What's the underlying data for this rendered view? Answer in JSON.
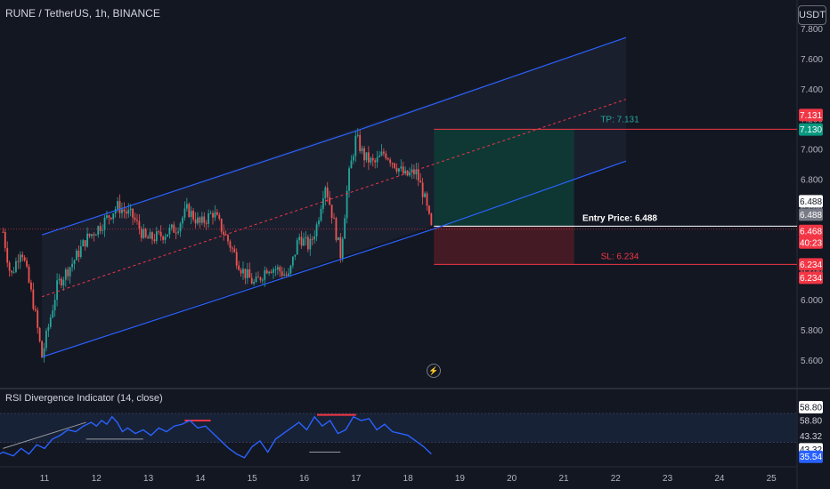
{
  "header": {
    "symbol": "RUNE / TetherUS, 1h, BINANCE",
    "currency": "USDT"
  },
  "indicator": {
    "title": "RSI Divergence Indicator (14, close)"
  },
  "colors": {
    "background": "#131722",
    "up": "#26a69a",
    "down": "#ef5350",
    "channel": "#2962ff",
    "midline": "#f23645",
    "rsi_line": "#2962ff",
    "bearish_div": "#f23645",
    "bullish_div": "#9598a1"
  },
  "trade": {
    "tp_label": "TP: 7.131",
    "tp": 7.131,
    "entry_label": "Entry Price: 6.488",
    "entry": 6.488,
    "sl_label": "SL: 6.234",
    "sl": 6.234
  },
  "chart_data": [
    {
      "type": "candlestick",
      "title": "RUNE / TetherUS, 1h, BINANCE",
      "xlabel": "",
      "ylabel": "",
      "x_ticks": [
        "11",
        "12",
        "13",
        "14",
        "15",
        "16",
        "17",
        "18",
        "19",
        "20",
        "21",
        "22",
        "23",
        "24",
        "25"
      ],
      "y_ticks": [
        "5.600",
        "5.800",
        "6.000",
        "6.200",
        "6.400",
        "6.600",
        "6.800",
        "7.000",
        "7.200",
        "7.400",
        "7.600",
        "7.800"
      ],
      "ylim": [
        5.55,
        7.85
      ],
      "price_keypoints": [
        {
          "day": 10.2,
          "price": 6.45
        },
        {
          "day": 10.35,
          "price": 6.15
        },
        {
          "day": 10.55,
          "price": 6.35
        },
        {
          "day": 10.8,
          "price": 5.95
        },
        {
          "day": 10.95,
          "price": 5.62
        },
        {
          "day": 11.25,
          "price": 6.1
        },
        {
          "day": 11.55,
          "price": 6.25
        },
        {
          "day": 11.8,
          "price": 6.4
        },
        {
          "day": 12.1,
          "price": 6.5
        },
        {
          "day": 12.4,
          "price": 6.62
        },
        {
          "day": 12.7,
          "price": 6.55
        },
        {
          "day": 12.95,
          "price": 6.4
        },
        {
          "day": 13.2,
          "price": 6.42
        },
        {
          "day": 13.55,
          "price": 6.48
        },
        {
          "day": 13.75,
          "price": 6.6
        },
        {
          "day": 14.0,
          "price": 6.5
        },
        {
          "day": 14.25,
          "price": 6.58
        },
        {
          "day": 14.55,
          "price": 6.38
        },
        {
          "day": 14.8,
          "price": 6.2
        },
        {
          "day": 15.05,
          "price": 6.1
        },
        {
          "day": 15.3,
          "price": 6.22
        },
        {
          "day": 15.5,
          "price": 6.2
        },
        {
          "day": 15.7,
          "price": 6.15
        },
        {
          "day": 15.9,
          "price": 6.42
        },
        {
          "day": 16.1,
          "price": 6.35
        },
        {
          "day": 16.25,
          "price": 6.5
        },
        {
          "day": 16.4,
          "price": 6.78
        },
        {
          "day": 16.55,
          "price": 6.55
        },
        {
          "day": 16.7,
          "price": 6.3
        },
        {
          "day": 16.85,
          "price": 6.8
        },
        {
          "day": 17.0,
          "price": 7.08
        },
        {
          "day": 17.15,
          "price": 6.95
        },
        {
          "day": 17.35,
          "price": 6.9
        },
        {
          "day": 17.55,
          "price": 6.98
        },
        {
          "day": 17.75,
          "price": 6.9
        },
        {
          "day": 17.95,
          "price": 6.82
        },
        {
          "day": 18.15,
          "price": 6.85
        },
        {
          "day": 18.3,
          "price": 6.7
        },
        {
          "day": 18.45,
          "price": 6.47
        }
      ],
      "channel": {
        "lower": [
          {
            "day": 10.95,
            "price": 5.62
          },
          {
            "day": 18.5,
            "price": 6.47
          },
          {
            "day": 22.2,
            "price": 6.92
          }
        ],
        "upper": [
          {
            "day": 10.95,
            "price": 6.43
          },
          {
            "day": 17.0,
            "price": 7.12
          },
          {
            "day": 22.2,
            "price": 7.74
          }
        ],
        "mid": [
          {
            "day": 10.95,
            "price": 6.02
          },
          {
            "day": 22.2,
            "price": 7.33
          }
        ]
      },
      "position": {
        "start_day": 18.5,
        "end_day": 21.2,
        "tp": 7.131,
        "entry": 6.488,
        "sl": 6.234
      },
      "price_labels": [
        {
          "text": "7.131",
          "color": "#f23645",
          "text_color": "#ffffff"
        },
        {
          "text": "7.130",
          "color": "#089981",
          "text_color": "#ffffff"
        },
        {
          "text": "6.488",
          "color": "#ffffff",
          "text_color": "#131722"
        },
        {
          "text": "6.488",
          "color": "#787b86",
          "text_color": "#ffffff"
        },
        {
          "text": "6.468",
          "color": "#f23645",
          "text_color": "#ffffff"
        },
        {
          "text": "40:23",
          "color": "#f23645",
          "text_color": "#ffffff"
        },
        {
          "text": "6.234",
          "color": "#f23645",
          "text_color": "#ffffff"
        },
        {
          "text": "6.234",
          "color": "#f23645",
          "text_color": "#ffffff"
        }
      ]
    },
    {
      "type": "line",
      "title": "RSI Divergence Indicator (14, close)",
      "ylim": [
        30,
        61
      ],
      "x_days": [
        10.0,
        10.2,
        10.4,
        10.55,
        10.7,
        10.85,
        11.0,
        11.15,
        11.3,
        11.45,
        11.6,
        11.75,
        11.9,
        12.0,
        12.1,
        12.2,
        12.3,
        12.4,
        12.5,
        12.6,
        12.75,
        12.9,
        13.05,
        13.2,
        13.35,
        13.5,
        13.65,
        13.8,
        13.95,
        14.1,
        14.25,
        14.4,
        14.55,
        14.7,
        14.85,
        15.0,
        15.15,
        15.3,
        15.45,
        15.6,
        15.75,
        15.9,
        16.05,
        16.2,
        16.35,
        16.5,
        16.65,
        16.8,
        16.95,
        17.1,
        17.25,
        17.4,
        17.55,
        17.7,
        17.85,
        18.0,
        18.15,
        18.3,
        18.45
      ],
      "values": [
        35,
        38,
        36,
        40,
        37,
        42,
        40,
        45,
        47,
        50,
        49,
        52,
        54,
        52,
        55,
        53,
        57,
        54,
        49,
        51,
        48,
        50,
        47,
        51,
        49,
        52,
        53,
        55,
        51,
        52,
        48,
        44,
        40,
        37,
        35,
        41,
        44,
        38,
        45,
        48,
        51,
        54,
        50,
        57,
        52,
        55,
        48,
        50,
        57,
        55,
        56,
        50,
        53,
        49,
        48,
        47,
        44,
        41,
        37
      ],
      "levels": [
        58.8,
        43.32
      ],
      "level_labels": [
        {
          "text": "58.80",
          "color": "#ffffff",
          "text_color": "#131722"
        },
        {
          "text": "58.80",
          "color": "#131722",
          "text_color": "#d1d4dc"
        },
        {
          "text": "43.32",
          "color": "#131722",
          "text_color": "#d1d4dc"
        },
        {
          "text": "43.32",
          "color": "#ffffff",
          "text_color": "#131722"
        },
        {
          "text": "35.54",
          "color": "#2962ff",
          "text_color": "#ffffff"
        }
      ],
      "divergences": [
        {
          "kind": "bearish",
          "from": {
            "day": 13.7,
            "value": 55
          },
          "to": {
            "day": 14.2,
            "value": 55
          }
        },
        {
          "kind": "bearish",
          "from": {
            "day": 16.25,
            "value": 58
          },
          "to": {
            "day": 17.0,
            "value": 58
          }
        },
        {
          "kind": "bullish",
          "from": {
            "day": 10.2,
            "value": 40
          },
          "to": {
            "day": 11.8,
            "value": 54
          }
        },
        {
          "kind": "bullish",
          "from": {
            "day": 11.8,
            "value": 45
          },
          "to": {
            "day": 12.9,
            "value": 45
          }
        },
        {
          "kind": "bullish",
          "from": {
            "day": 16.1,
            "value": 38
          },
          "to": {
            "day": 16.7,
            "value": 38
          }
        }
      ]
    }
  ]
}
